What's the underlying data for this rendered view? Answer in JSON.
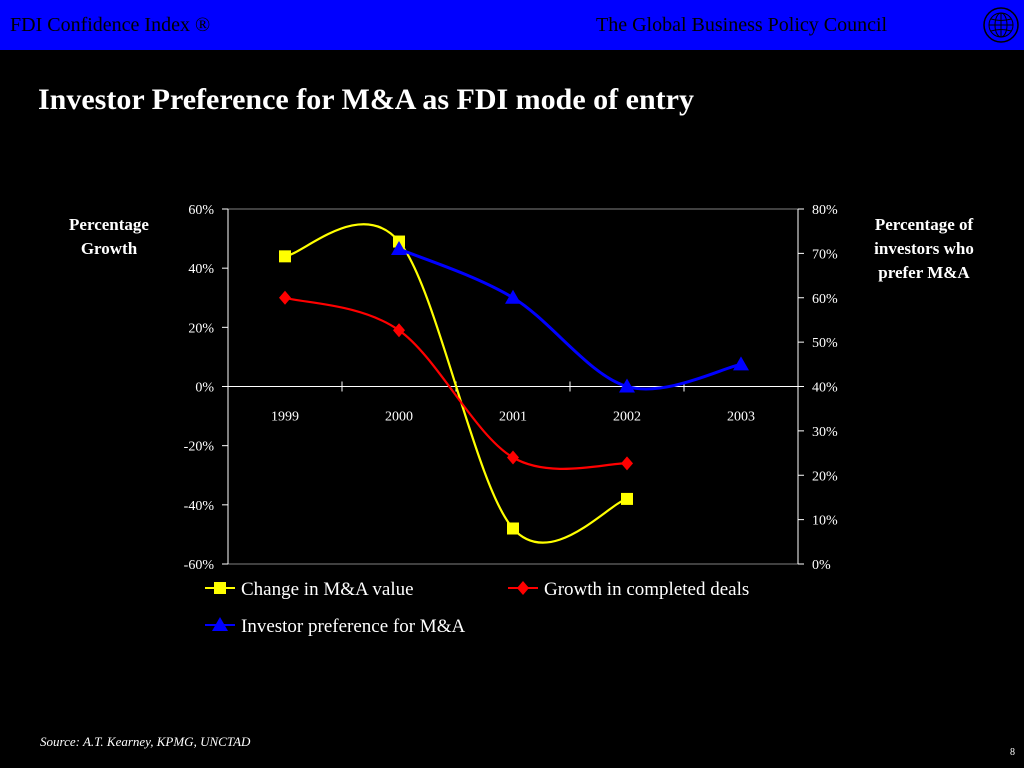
{
  "header": {
    "left_text": "FDI Confidence Index ®",
    "right_text": "The Global Business Policy Council"
  },
  "slide": {
    "title": "Investor Preference for M&A as FDI mode of entry",
    "source": "Source: A.T. Kearney, KPMG, UNCTAD",
    "page_number": "8"
  },
  "colors": {
    "header_bg": "#0000ff",
    "background": "#000000",
    "series_ma_value": "#ffff00",
    "series_completed_deals": "#ff0000",
    "series_investor_pref": "#0000ff"
  },
  "chart_data": {
    "type": "line",
    "categories": [
      "1999",
      "2000",
      "2001",
      "2002",
      "2003"
    ],
    "left_axis": {
      "title": "Percentage Growth",
      "min": -60,
      "max": 60,
      "step": 20,
      "tick_labels": [
        "60%",
        "40%",
        "20%",
        "0%",
        "-20%",
        "-40%",
        "-60%"
      ]
    },
    "right_axis": {
      "title": "Percentage of investors who prefer M&A",
      "min": 0,
      "max": 80,
      "step": 10,
      "tick_labels": [
        "80%",
        "70%",
        "60%",
        "50%",
        "40%",
        "30%",
        "20%",
        "10%",
        "0%"
      ]
    },
    "series": [
      {
        "name": "Change in M&A value",
        "axis": "left",
        "marker": "square",
        "values": [
          44,
          49,
          -48,
          -38,
          null
        ]
      },
      {
        "name": "Growth in completed deals",
        "axis": "left",
        "marker": "diamond",
        "values": [
          30,
          19,
          -24,
          -26,
          null
        ]
      },
      {
        "name": "Investor preference for M&A",
        "axis": "right",
        "marker": "triangle",
        "values": [
          null,
          71,
          60,
          40,
          45
        ]
      }
    ],
    "legend": [
      "Change in M&A value",
      "Growth in completed deals",
      "Investor preference for M&A"
    ],
    "legend_position": "bottom",
    "grid": false,
    "smooth": true
  }
}
